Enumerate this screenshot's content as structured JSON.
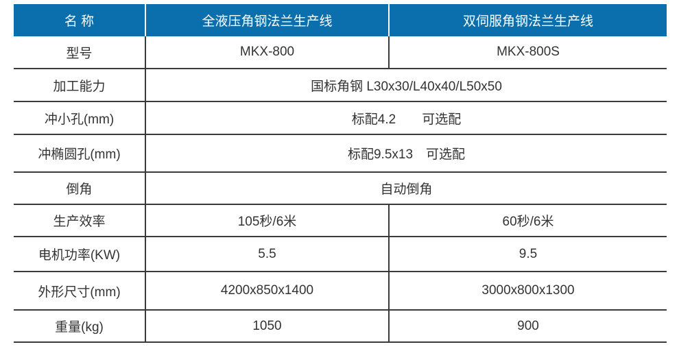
{
  "header": [
    "名 称",
    "全液压角钢法兰生产线",
    "双伺服角钢法兰生产线"
  ],
  "rows": [
    {
      "label": "型号",
      "values": [
        "MKX-800",
        "MKX-800S"
      ]
    },
    {
      "label": "加工能力",
      "values": [
        "国标角钢 L30x30/L40x40/L50x50"
      ]
    },
    {
      "label": "冲小孔(mm)",
      "values": [
        "标配4.2　　可选配"
      ]
    },
    {
      "label": "冲椭圆孔(mm)",
      "values": [
        "标配9.5x13　可选配"
      ]
    },
    {
      "label": "倒角",
      "values": [
        "自动倒角"
      ]
    },
    {
      "label": "生产效率",
      "values": [
        "105秒/6米",
        "60秒/6米"
      ]
    },
    {
      "label": "电机功率(KW)",
      "values": [
        "5.5",
        "9.5"
      ]
    },
    {
      "label": "外形尺寸(mm)",
      "values": [
        "4200x850x1400",
        "3000x800x1300"
      ]
    },
    {
      "label": "重量(kg)",
      "values": [
        "1050",
        "900"
      ]
    }
  ],
  "colors": {
    "header_bg": "#0a6fac",
    "header_text": "#ffffff",
    "text": "#333333"
  }
}
